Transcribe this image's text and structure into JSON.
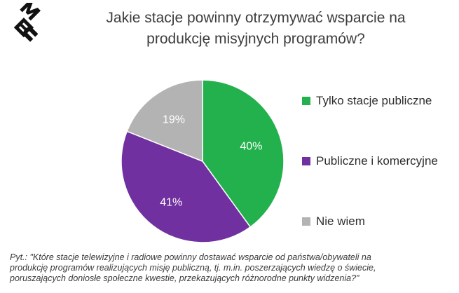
{
  "title": [
    "Jakie stacje powinny otrzymywać wsparcie na",
    "produkcję misyjnych programów?"
  ],
  "logo_text": "MEC",
  "chart_data": {
    "type": "pie",
    "title": "Jakie stacje powinny otrzymywać wsparcie na produkcję misyjnych programów?",
    "slices": [
      {
        "name": "Tylko stacje publiczne",
        "value": 40,
        "label": "40%",
        "color": "#22b14c"
      },
      {
        "name": "Publiczne i komercyjne",
        "value": 41,
        "label": "41%",
        "color": "#7030a0"
      },
      {
        "name": "Nie wiem",
        "value": 19,
        "label": "19%",
        "color": "#b3b3b3"
      }
    ],
    "start": "12 o'clock",
    "direction": "clockwise",
    "legend_position": "right"
  },
  "footnote": [
    "Pyt.: \"Które stacje telewizyjne i radiowe powinny dostawać wsparcie od państwa/obywateli na",
    "produkcję programów realizujących misję publiczną, tj. m.in. poszerzających wiedzę o świecie,",
    "poruszających doniosłe społeczne kwestie, przekazujących różnorodne punkty widzenia?\""
  ]
}
